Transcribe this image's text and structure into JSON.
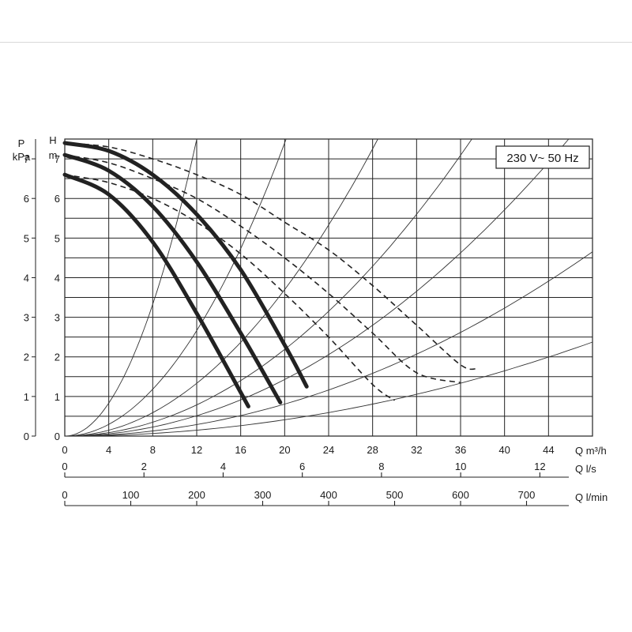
{
  "chart_data": {
    "type": "line",
    "title": "",
    "badge": "230 V~ 50 Hz",
    "left_axes": [
      {
        "label_line1": "P",
        "label_line2": "kPa",
        "ticks": [
          "0",
          "1",
          "2",
          "3",
          "4",
          "5",
          "6",
          "7"
        ]
      },
      {
        "label_line1": "H",
        "label_line2": "m",
        "ticks": [
          "0",
          "1",
          "2",
          "3",
          "4",
          "5",
          "6",
          "7"
        ]
      }
    ],
    "bottom_axes": [
      {
        "label": "Q m³/h",
        "ticks": [
          0,
          4,
          8,
          12,
          16,
          20,
          24,
          28,
          32,
          36,
          40,
          44
        ],
        "range": [
          0,
          48
        ]
      },
      {
        "label": "Q l/s",
        "ticks": [
          0,
          2,
          4,
          6,
          8,
          10,
          12
        ],
        "range": [
          0,
          13.33
        ]
      },
      {
        "label": "Q l/min",
        "ticks": [
          0,
          100,
          200,
          300,
          400,
          500,
          600,
          700
        ],
        "range": [
          0,
          800
        ]
      }
    ],
    "ylim": [
      0,
      7.5
    ],
    "xlim": [
      0,
      48
    ],
    "grid": true,
    "series": [
      {
        "style": "solid",
        "x": [
          0,
          4,
          8,
          12,
          16.7
        ],
        "y": [
          6.6,
          6.1,
          4.9,
          3.1,
          0.75
        ]
      },
      {
        "style": "solid",
        "x": [
          0,
          4,
          8,
          12,
          16,
          19.6
        ],
        "y": [
          7.1,
          6.7,
          5.8,
          4.4,
          2.6,
          0.85
        ]
      },
      {
        "style": "solid",
        "x": [
          0,
          4,
          8,
          12,
          16,
          20,
          22
        ],
        "y": [
          7.4,
          7.2,
          6.6,
          5.6,
          4.2,
          2.3,
          1.25
        ]
      },
      {
        "style": "dashed",
        "x": [
          0,
          4,
          8,
          12,
          16,
          20,
          24,
          28,
          30
        ],
        "y": [
          6.6,
          6.4,
          6.0,
          5.4,
          4.6,
          3.6,
          2.5,
          1.3,
          0.9
        ]
      },
      {
        "style": "dashed",
        "x": [
          0,
          4,
          8,
          12,
          16,
          20,
          24,
          28,
          32,
          36
        ],
        "y": [
          7.1,
          6.9,
          6.5,
          6.0,
          5.3,
          4.5,
          3.6,
          2.6,
          1.6,
          1.35
        ]
      },
      {
        "style": "dashed",
        "x": [
          0,
          4,
          8,
          12,
          16,
          20,
          24,
          28,
          32,
          36,
          37.5
        ],
        "y": [
          7.4,
          7.3,
          7.0,
          6.6,
          6.1,
          5.4,
          4.7,
          3.8,
          2.8,
          1.8,
          1.7
        ]
      }
    ],
    "system_curves_k": [
      0.052,
      0.0185,
      0.00925,
      0.00547,
      0.00357,
      0.00202,
      0.00103
    ]
  }
}
